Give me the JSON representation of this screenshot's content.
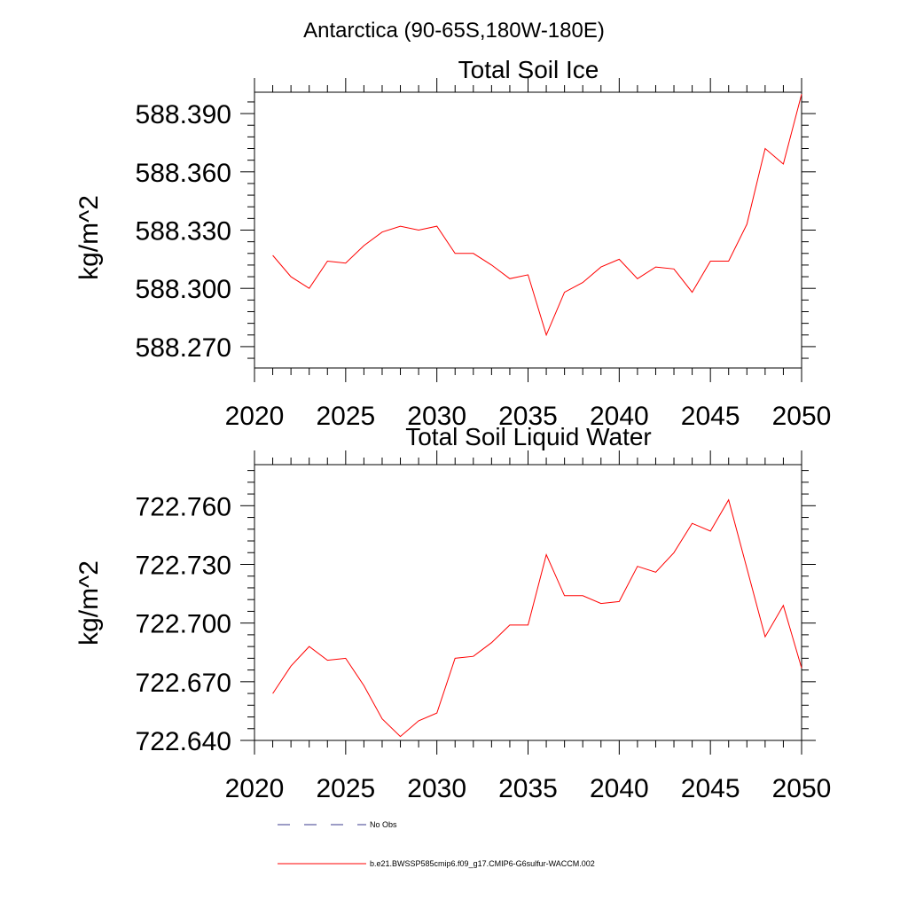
{
  "region_title": "Antarctica (90-65S,180W-180E)",
  "line_color": "#ff0000",
  "chart_data": [
    {
      "type": "line",
      "title": "Total Soil Ice",
      "xlabel": "",
      "ylabel": "kg/m^2",
      "xlim": [
        2020,
        2050
      ],
      "ylim": [
        588.259,
        588.401
      ],
      "xticks": [
        "2020",
        "2025",
        "2030",
        "2035",
        "2040",
        "2045",
        "2050"
      ],
      "yticks": [
        "588.270",
        "588.300",
        "588.330",
        "588.360",
        "588.390"
      ],
      "series": [
        {
          "name": "b.e21.BWSSP585cmip6.f09_g17.CMIP6-G6sulfur-WACCM.002",
          "x": [
            2021,
            2022,
            2023,
            2024,
            2025,
            2026,
            2027,
            2028,
            2029,
            2030,
            2031,
            2032,
            2033,
            2034,
            2035,
            2036,
            2037,
            2038,
            2039,
            2040,
            2041,
            2042,
            2043,
            2044,
            2045,
            2046,
            2047,
            2048,
            2049,
            2050
          ],
          "values": [
            588.317,
            588.306,
            588.3,
            588.314,
            588.313,
            588.322,
            588.329,
            588.332,
            588.33,
            588.332,
            588.318,
            588.318,
            588.312,
            588.305,
            588.307,
            588.276,
            588.298,
            588.303,
            588.311,
            588.315,
            588.305,
            588.311,
            588.31,
            588.298,
            588.314,
            588.314,
            588.333,
            588.372,
            588.364,
            588.4
          ]
        }
      ]
    },
    {
      "type": "line",
      "title": "Total Soil Liquid Water",
      "xlabel": "",
      "ylabel": "kg/m^2",
      "xlim": [
        2020,
        2050
      ],
      "ylim": [
        722.64,
        722.781
      ],
      "xticks": [
        "2020",
        "2025",
        "2030",
        "2035",
        "2040",
        "2045",
        "2050"
      ],
      "yticks": [
        "722.640",
        "722.670",
        "722.700",
        "722.730",
        "722.760"
      ],
      "series": [
        {
          "name": "b.e21.BWSSP585cmip6.f09_g17.CMIP6-G6sulfur-WACCM.002",
          "x": [
            2021,
            2022,
            2023,
            2024,
            2025,
            2026,
            2027,
            2028,
            2029,
            2030,
            2031,
            2032,
            2033,
            2034,
            2035,
            2036,
            2037,
            2038,
            2039,
            2040,
            2041,
            2042,
            2043,
            2044,
            2045,
            2046,
            2047,
            2048,
            2049,
            2050
          ],
          "values": [
            722.664,
            722.678,
            722.688,
            722.681,
            722.682,
            722.668,
            722.651,
            722.642,
            722.65,
            722.654,
            722.682,
            722.683,
            722.69,
            722.699,
            722.699,
            722.735,
            722.714,
            722.714,
            722.71,
            722.711,
            722.729,
            722.726,
            722.736,
            722.751,
            722.747,
            722.763,
            722.728,
            722.693,
            722.709,
            722.677
          ]
        }
      ]
    }
  ],
  "legend": [
    {
      "label": "No Obs",
      "style": "dashed",
      "color": "#3a3a8c"
    },
    {
      "label": "b.e21.BWSSP585cmip6.f09_g17.CMIP6-G6sulfur-WACCM.002",
      "style": "solid",
      "color": "#ff0000"
    }
  ]
}
